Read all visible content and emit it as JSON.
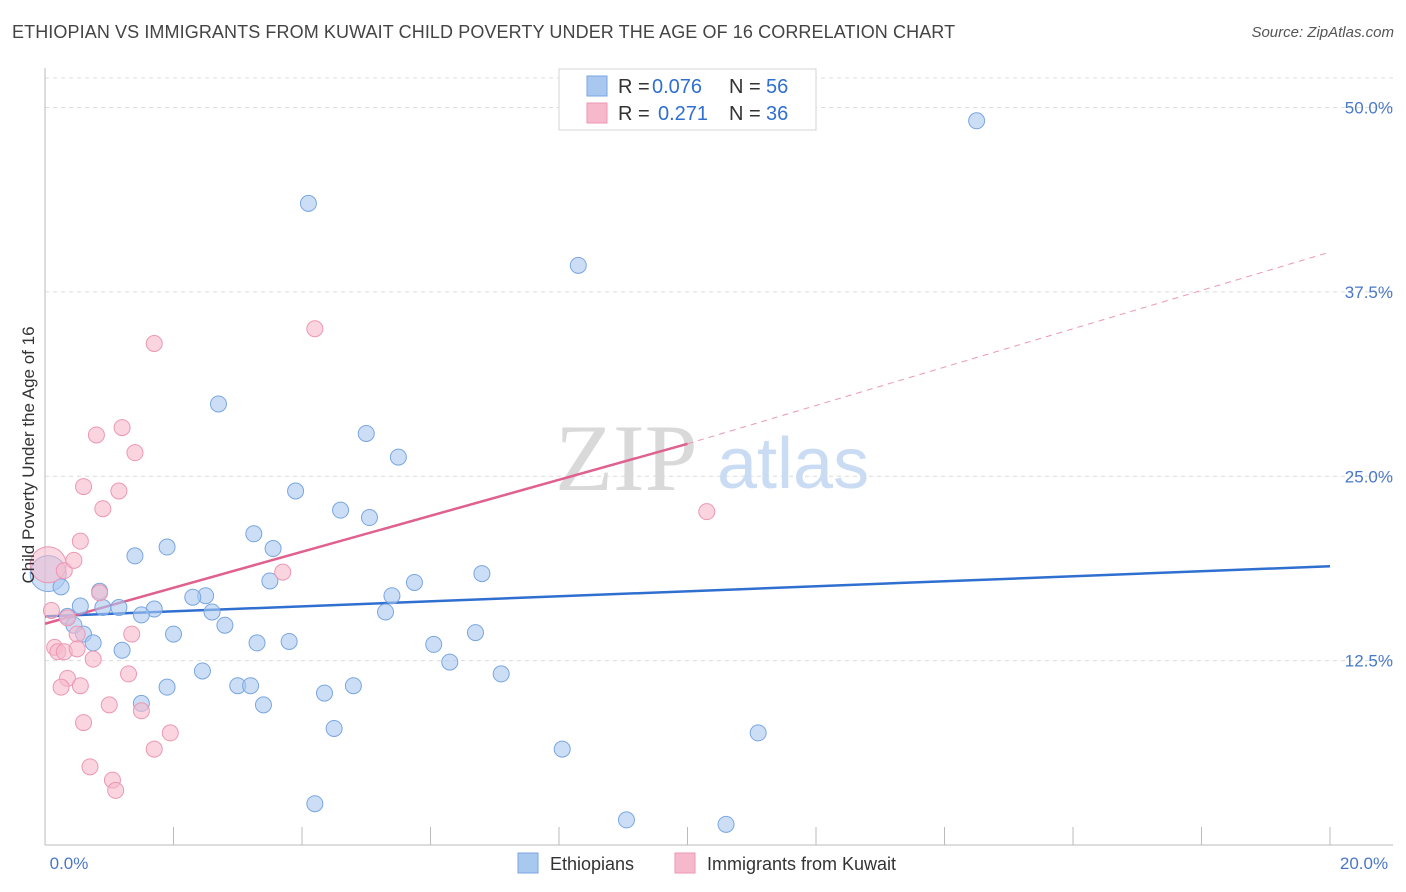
{
  "title": "ETHIOPIAN VS IMMIGRANTS FROM KUWAIT CHILD POVERTY UNDER THE AGE OF 16 CORRELATION CHART",
  "source": "Source: ZipAtlas.com",
  "watermark": {
    "zip": "ZIP",
    "atlas": "atlas"
  },
  "colors": {
    "blue_fill": "#a9c8f0",
    "blue_stroke": "#7aa6e0",
    "blue_line": "#2f6fd0",
    "pink_fill": "#f6b9cc",
    "pink_stroke": "#ec97b3",
    "pink_line": "#e0608f",
    "grid": "#dcdcdc",
    "tick_text": "#4a78c8"
  },
  "legend": {
    "rows": [
      {
        "r_label": "R =",
        "r_value": "0.076",
        "n_label": "N =",
        "n_value": "56",
        "series": "Ethiopians"
      },
      {
        "r_label": "R =",
        "r_value": "0.271",
        "n_label": "N =",
        "n_value": "36",
        "series": "Immigrants from Kuwait"
      }
    ]
  },
  "chart_data": {
    "type": "scatter",
    "title": "ETHIOPIAN VS IMMIGRANTS FROM KUWAIT CHILD POVERTY UNDER THE AGE OF 16 CORRELATION CHART",
    "xlabel": "",
    "ylabel": "Child Poverty Under the Age of 16",
    "xlim": [
      0,
      20
    ],
    "ylim": [
      0,
      52
    ],
    "x_tick_labels": [
      "0.0%",
      "20.0%"
    ],
    "y_ticks": [
      12.5,
      25.0,
      37.5,
      50.0
    ],
    "y_tick_labels": [
      "12.5%",
      "25.0%",
      "37.5%",
      "50.0%"
    ],
    "legend_position": "top-center",
    "series": [
      {
        "name": "Ethiopians",
        "trend": {
          "x": [
            0,
            20
          ],
          "y": [
            15.5,
            18.9
          ],
          "dashed_extension": false
        },
        "points": [
          {
            "x": 0.05,
            "y": 18.4,
            "big": true
          },
          {
            "x": 0.25,
            "y": 17.5
          },
          {
            "x": 0.85,
            "y": 17.2
          },
          {
            "x": 0.55,
            "y": 16.2
          },
          {
            "x": 1.4,
            "y": 19.6
          },
          {
            "x": 1.9,
            "y": 20.2
          },
          {
            "x": 0.9,
            "y": 16.1
          },
          {
            "x": 1.15,
            "y": 16.1
          },
          {
            "x": 1.7,
            "y": 16.0
          },
          {
            "x": 2.5,
            "y": 16.9
          },
          {
            "x": 2.3,
            "y": 16.8
          },
          {
            "x": 0.35,
            "y": 15.5
          },
          {
            "x": 0.45,
            "y": 14.9
          },
          {
            "x": 0.6,
            "y": 14.3
          },
          {
            "x": 0.75,
            "y": 13.7
          },
          {
            "x": 1.2,
            "y": 13.2
          },
          {
            "x": 1.5,
            "y": 15.6
          },
          {
            "x": 2.0,
            "y": 14.3
          },
          {
            "x": 2.6,
            "y": 15.8
          },
          {
            "x": 2.8,
            "y": 14.9
          },
          {
            "x": 3.3,
            "y": 13.7
          },
          {
            "x": 3.0,
            "y": 10.8
          },
          {
            "x": 3.2,
            "y": 10.8
          },
          {
            "x": 3.4,
            "y": 9.5
          },
          {
            "x": 1.5,
            "y": 9.6
          },
          {
            "x": 1.9,
            "y": 10.7
          },
          {
            "x": 2.45,
            "y": 11.8
          },
          {
            "x": 2.7,
            "y": 29.9
          },
          {
            "x": 3.55,
            "y": 20.1
          },
          {
            "x": 3.25,
            "y": 21.1
          },
          {
            "x": 3.5,
            "y": 17.9
          },
          {
            "x": 3.8,
            "y": 13.8
          },
          {
            "x": 3.9,
            "y": 24.0
          },
          {
            "x": 4.35,
            "y": 10.3
          },
          {
            "x": 4.5,
            "y": 7.9
          },
          {
            "x": 4.2,
            "y": 2.8
          },
          {
            "x": 4.6,
            "y": 22.7
          },
          {
            "x": 4.8,
            "y": 10.8
          },
          {
            "x": 5.05,
            "y": 22.2
          },
          {
            "x": 5.0,
            "y": 27.9
          },
          {
            "x": 5.4,
            "y": 16.9
          },
          {
            "x": 5.3,
            "y": 15.8
          },
          {
            "x": 5.75,
            "y": 17.8
          },
          {
            "x": 6.05,
            "y": 13.6
          },
          {
            "x": 6.3,
            "y": 12.4
          },
          {
            "x": 6.7,
            "y": 14.4
          },
          {
            "x": 6.8,
            "y": 18.4
          },
          {
            "x": 7.1,
            "y": 11.6
          },
          {
            "x": 5.5,
            "y": 26.3
          },
          {
            "x": 4.1,
            "y": 43.5
          },
          {
            "x": 8.05,
            "y": 6.5
          },
          {
            "x": 8.3,
            "y": 39.3
          },
          {
            "x": 9.05,
            "y": 1.7
          },
          {
            "x": 10.6,
            "y": 1.4
          },
          {
            "x": 11.1,
            "y": 7.6
          },
          {
            "x": 14.5,
            "y": 49.1
          }
        ]
      },
      {
        "name": "Immigrants from Kuwait",
        "trend": {
          "x": [
            0,
            10
          ],
          "y": [
            15.0,
            27.2
          ],
          "dashed_extension_to": [
            20,
            40.2
          ]
        },
        "points": [
          {
            "x": 0.05,
            "y": 19.0,
            "big": true
          },
          {
            "x": 0.1,
            "y": 15.9
          },
          {
            "x": 0.3,
            "y": 18.6
          },
          {
            "x": 0.45,
            "y": 19.3
          },
          {
            "x": 0.55,
            "y": 20.6
          },
          {
            "x": 0.6,
            "y": 24.3
          },
          {
            "x": 0.15,
            "y": 13.4
          },
          {
            "x": 0.2,
            "y": 13.1
          },
          {
            "x": 0.3,
            "y": 13.1
          },
          {
            "x": 0.35,
            "y": 15.4
          },
          {
            "x": 0.5,
            "y": 14.3
          },
          {
            "x": 0.35,
            "y": 11.3
          },
          {
            "x": 0.25,
            "y": 10.7
          },
          {
            "x": 0.55,
            "y": 10.8
          },
          {
            "x": 0.6,
            "y": 8.3
          },
          {
            "x": 0.75,
            "y": 12.6
          },
          {
            "x": 0.85,
            "y": 17.1
          },
          {
            "x": 0.8,
            "y": 27.8
          },
          {
            "x": 0.9,
            "y": 22.8
          },
          {
            "x": 1.0,
            "y": 9.5
          },
          {
            "x": 1.2,
            "y": 28.3
          },
          {
            "x": 1.15,
            "y": 24.0
          },
          {
            "x": 1.3,
            "y": 11.6
          },
          {
            "x": 1.35,
            "y": 14.3
          },
          {
            "x": 1.4,
            "y": 26.6
          },
          {
            "x": 1.5,
            "y": 9.1
          },
          {
            "x": 0.7,
            "y": 5.3
          },
          {
            "x": 1.05,
            "y": 4.4
          },
          {
            "x": 1.1,
            "y": 3.7
          },
          {
            "x": 1.7,
            "y": 6.5
          },
          {
            "x": 1.95,
            "y": 7.6
          },
          {
            "x": 1.7,
            "y": 34.0
          },
          {
            "x": 3.7,
            "y": 18.5
          },
          {
            "x": 4.2,
            "y": 35.0
          },
          {
            "x": 10.3,
            "y": 22.6
          },
          {
            "x": 0.5,
            "y": 13.3
          }
        ]
      }
    ]
  }
}
